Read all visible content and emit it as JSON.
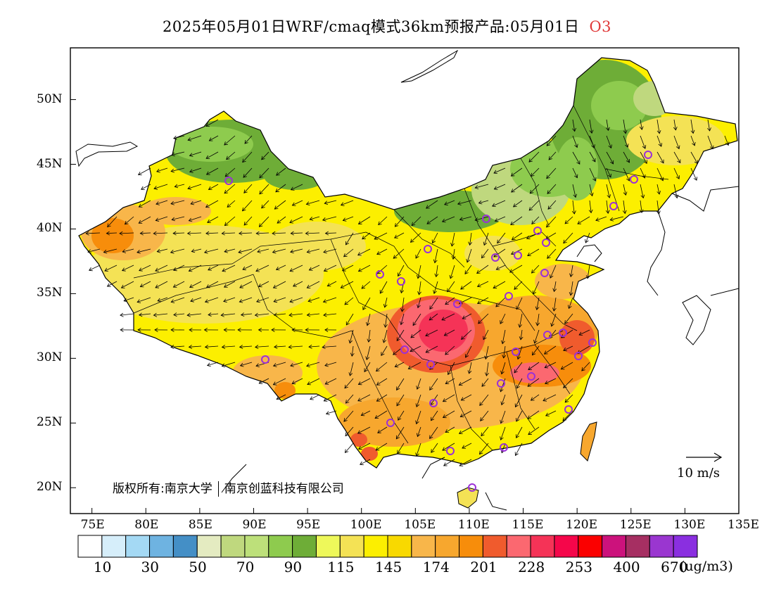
{
  "header": {
    "title": "2025年05月01日WRF/cmaq模式36km预报产品:05月01日",
    "pollutant": "O3"
  },
  "map": {
    "lon_ticks": [
      "75E",
      "80E",
      "85E",
      "90E",
      "95E",
      "100E",
      "105E",
      "110E",
      "115E",
      "120E",
      "125E",
      "130E",
      "135E"
    ],
    "lat_ticks": [
      "20N",
      "25N",
      "30N",
      "35N",
      "40N",
      "45N",
      "50N"
    ],
    "copyright_left": "版权所有:南京大学",
    "copyright_right": "南京创蓝科技有限公司",
    "wind_reference": "10 m/s"
  },
  "colorbar": {
    "colors": [
      "#ffffff",
      "#d6eefa",
      "#a4d9f4",
      "#6eb3e1",
      "#448fc6",
      "#e4ebc1",
      "#bfd87e",
      "#bde07a",
      "#8ecb4e",
      "#6ead37",
      "#eef85a",
      "#f4e255",
      "#fcef00",
      "#f8d900",
      "#f8b64a",
      "#f7a72e",
      "#f78d0b",
      "#f05b2d",
      "#fb6870",
      "#f53357",
      "#f5064a",
      "#fb0000",
      "#cc127c",
      "#a62f62",
      "#9a36d0",
      "#8a2fe0"
    ],
    "labels": [
      "10",
      "30",
      "50",
      "70",
      "90",
      "115",
      "145",
      "174",
      "201",
      "228",
      "253",
      "400",
      "670"
    ],
    "unit": "(ug/m3)"
  }
}
